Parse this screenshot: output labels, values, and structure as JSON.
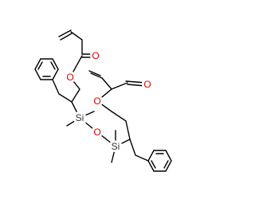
{
  "atoms": [
    {
      "label": "O"
    },
    {
      "label": "O"
    },
    {
      "label": "Si"
    },
    {
      "label": "O"
    },
    {
      "label": "Si"
    },
    {
      "label": "O"
    },
    {
      "label": "O"
    }
  ]
}
